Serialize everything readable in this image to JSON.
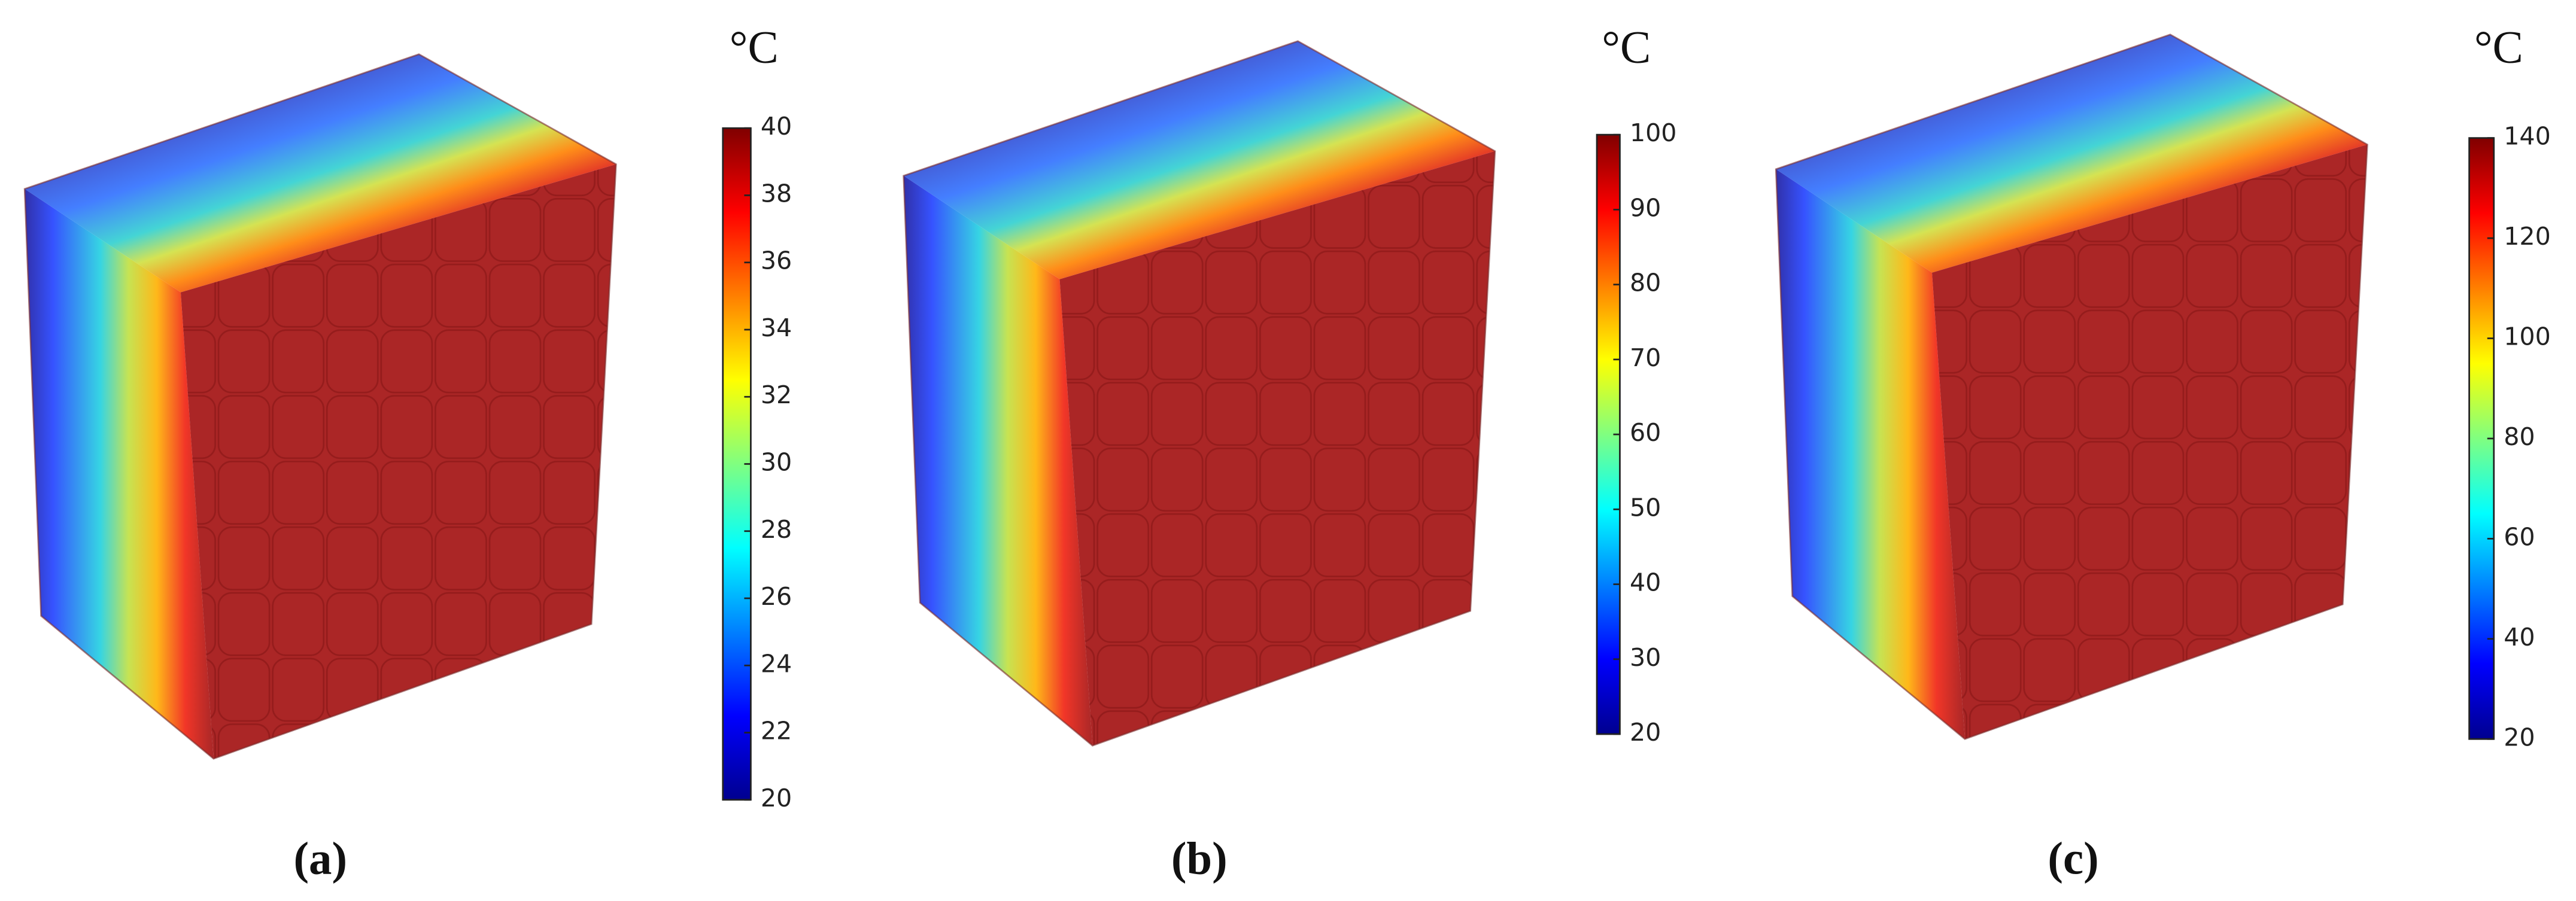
{
  "chart_data": [
    {
      "type": "colorbar",
      "title": "°C",
      "label": "(a)",
      "colormap": "jet",
      "ylim": [
        20,
        40
      ],
      "yticks": [
        20,
        22,
        24,
        26,
        28,
        30,
        32,
        34,
        36,
        38,
        40
      ]
    },
    {
      "type": "colorbar",
      "title": "°C",
      "label": "(b)",
      "colormap": "jet",
      "ylim": [
        20,
        100
      ],
      "yticks": [
        20,
        30,
        40,
        50,
        60,
        70,
        80,
        90,
        100
      ]
    },
    {
      "type": "colorbar",
      "title": "°C",
      "label": "(c)",
      "colormap": "jet",
      "ylim": [
        20,
        140
      ],
      "yticks": [
        20,
        40,
        60,
        80,
        100,
        120,
        140
      ]
    }
  ]
}
